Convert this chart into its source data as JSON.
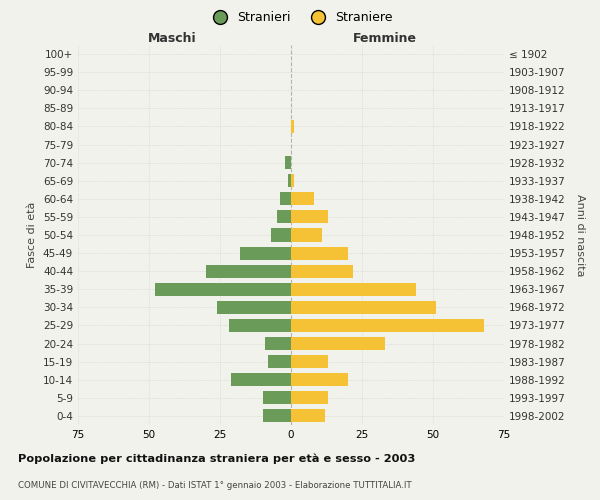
{
  "age_groups": [
    "0-4",
    "5-9",
    "10-14",
    "15-19",
    "20-24",
    "25-29",
    "30-34",
    "35-39",
    "40-44",
    "45-49",
    "50-54",
    "55-59",
    "60-64",
    "65-69",
    "70-74",
    "75-79",
    "80-84",
    "85-89",
    "90-94",
    "95-99",
    "100+"
  ],
  "birth_years": [
    "1998-2002",
    "1993-1997",
    "1988-1992",
    "1983-1987",
    "1978-1982",
    "1973-1977",
    "1968-1972",
    "1963-1967",
    "1958-1962",
    "1953-1957",
    "1948-1952",
    "1943-1947",
    "1938-1942",
    "1933-1937",
    "1928-1932",
    "1923-1927",
    "1918-1922",
    "1913-1917",
    "1908-1912",
    "1903-1907",
    "≤ 1902"
  ],
  "males": [
    10,
    10,
    21,
    8,
    9,
    22,
    26,
    48,
    30,
    18,
    7,
    5,
    4,
    1,
    2,
    0,
    0,
    0,
    0,
    0,
    0
  ],
  "females": [
    12,
    13,
    20,
    13,
    33,
    68,
    51,
    44,
    22,
    20,
    11,
    13,
    8,
    1,
    0,
    0,
    1,
    0,
    0,
    0,
    0
  ],
  "male_color": "#6b9b58",
  "female_color": "#f5c235",
  "background_color": "#f2f2ec",
  "grid_color": "#cccccc",
  "center_line_color": "#999999",
  "xlim": 75,
  "title": "Popolazione per cittadinanza straniera per età e sesso - 2003",
  "subtitle": "COMUNE DI CIVITAVECCHIA (RM) - Dati ISTAT 1° gennaio 2003 - Elaborazione TUTTITALIA.IT",
  "ylabel_left": "Fasce di età",
  "ylabel_right": "Anni di nascita",
  "xlabel_left": "Maschi",
  "xlabel_right": "Femmine",
  "legend_stranieri": "Stranieri",
  "legend_straniere": "Straniere"
}
